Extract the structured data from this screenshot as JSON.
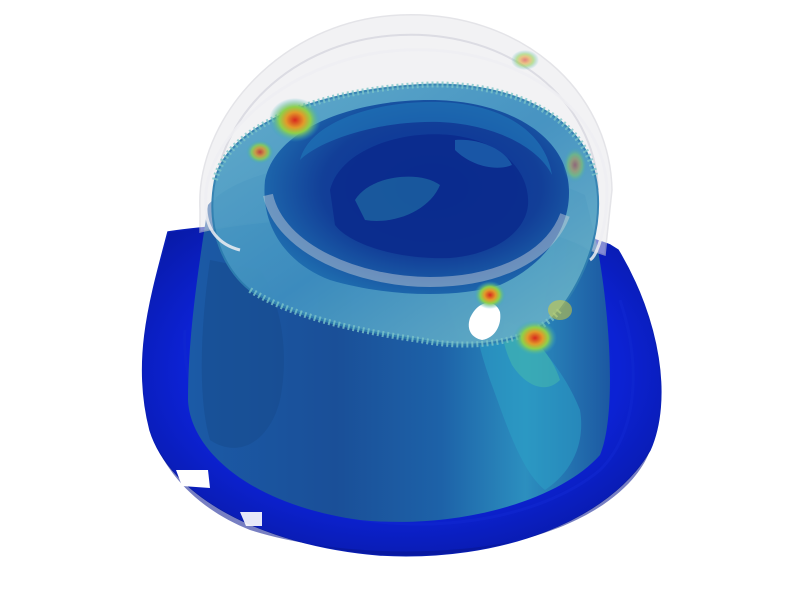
{
  "viewport": {
    "background": "#ffffff",
    "subject": "fea-stress-contour-cup-rendering"
  },
  "contour_palette": {
    "low": "#0a1fd8",
    "low_mid": "#1a5fb0",
    "mid": "#2fa6c8",
    "mid_high": "#4fd07a",
    "high_mid": "#e2d230",
    "high": "#d8281e"
  },
  "overlay": {
    "ghost_color": "#e8e8ec"
  }
}
